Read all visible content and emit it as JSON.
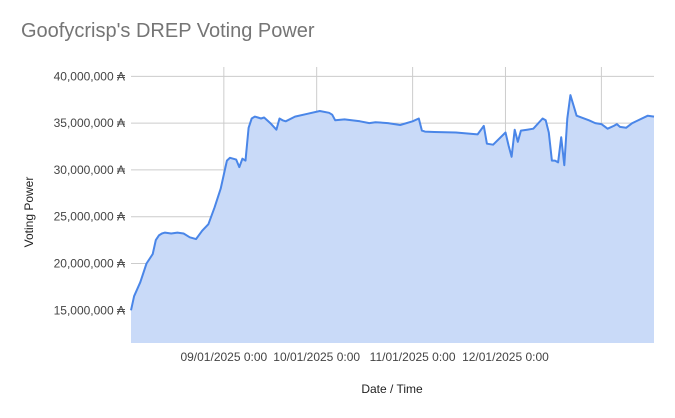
{
  "chart_data": {
    "type": "area",
    "title": "Goofycrisp's DREP Voting Power",
    "xlabel": "Date / Time",
    "ylabel": "Voting Power",
    "y_ticks": [
      "15,000,000 ₳",
      "20,000,000 ₳",
      "25,000,000 ₳",
      "30,000,000 ₳",
      "35,000,000 ₳",
      "40,000,000 ₳"
    ],
    "x_ticks": [
      "09/01/2025 0:00",
      "10/01/2025 0:00",
      "11/01/2025 0:00",
      "12/01/2025 0:00"
    ],
    "ylim": [
      11500000,
      41000000
    ],
    "xlim": [
      "2025-08-02",
      "2026-01-18"
    ],
    "grid": true,
    "line_color": "#4a86e8",
    "fill_color": "#c9daf8",
    "series": [
      {
        "x": [
          "2025-08-02",
          "2025-08-03",
          "2025-08-05",
          "2025-08-07",
          "2025-08-09",
          "2025-08-10",
          "2025-08-11",
          "2025-08-12",
          "2025-08-13",
          "2025-08-15",
          "2025-08-17",
          "2025-08-19",
          "2025-08-21",
          "2025-08-23",
          "2025-08-25",
          "2025-08-27",
          "2025-08-29",
          "2025-08-31",
          "2025-09-02",
          "2025-09-03",
          "2025-09-05",
          "2025-09-06",
          "2025-09-07",
          "2025-09-08",
          "2025-09-09",
          "2025-09-10",
          "2025-09-11",
          "2025-09-12",
          "2025-09-13",
          "2025-09-14",
          "2025-09-16",
          "2025-09-18",
          "2025-09-19",
          "2025-09-20",
          "2025-09-21",
          "2025-09-24",
          "2025-09-28",
          "2025-10-02",
          "2025-10-05",
          "2025-10-06",
          "2025-10-07",
          "2025-10-10",
          "2025-10-15",
          "2025-10-18",
          "2025-10-20",
          "2025-10-24",
          "2025-10-28",
          "2025-11-01",
          "2025-11-03",
          "2025-11-04",
          "2025-11-05",
          "2025-11-08",
          "2025-11-15",
          "2025-11-22",
          "2025-11-24",
          "2025-11-25",
          "2025-11-27",
          "2025-12-01",
          "2025-12-02",
          "2025-12-03",
          "2025-12-04",
          "2025-12-05",
          "2025-12-06",
          "2025-12-08",
          "2025-12-10",
          "2025-12-13",
          "2025-12-14",
          "2025-12-15",
          "2025-12-16",
          "2025-12-17",
          "2025-12-18",
          "2025-12-19",
          "2025-12-20",
          "2025-12-21",
          "2025-12-22",
          "2025-12-24",
          "2025-12-28",
          "2025-12-30",
          "2026-01-01",
          "2026-01-03",
          "2026-01-05",
          "2026-01-06",
          "2026-01-07",
          "2026-01-09",
          "2026-01-11",
          "2026-01-16",
          "2026-01-18"
        ],
        "y": [
          15000000,
          16500000,
          18000000,
          20000000,
          21000000,
          22500000,
          23000000,
          23200000,
          23300000,
          23200000,
          23300000,
          23200000,
          22800000,
          22600000,
          23500000,
          24200000,
          26000000,
          28000000,
          31000000,
          31300000,
          31100000,
          30300000,
          31200000,
          31000000,
          34500000,
          35500000,
          35700000,
          35600000,
          35500000,
          35600000,
          35000000,
          34300000,
          35500000,
          35300000,
          35200000,
          35700000,
          36000000,
          36300000,
          36100000,
          35900000,
          35300000,
          35400000,
          35200000,
          35000000,
          35100000,
          35000000,
          34800000,
          35200000,
          35500000,
          34200000,
          34100000,
          34050000,
          34000000,
          33800000,
          34700000,
          32800000,
          32700000,
          34000000,
          32600000,
          31400000,
          34300000,
          33000000,
          34200000,
          34300000,
          34400000,
          35500000,
          35300000,
          34000000,
          31000000,
          31000000,
          30800000,
          33500000,
          30500000,
          35500000,
          38000000,
          35800000,
          35300000,
          35000000,
          34900000,
          34400000,
          34700000,
          34900000,
          34600000,
          34500000,
          35000000,
          35800000,
          35700000
        ]
      }
    ]
  }
}
